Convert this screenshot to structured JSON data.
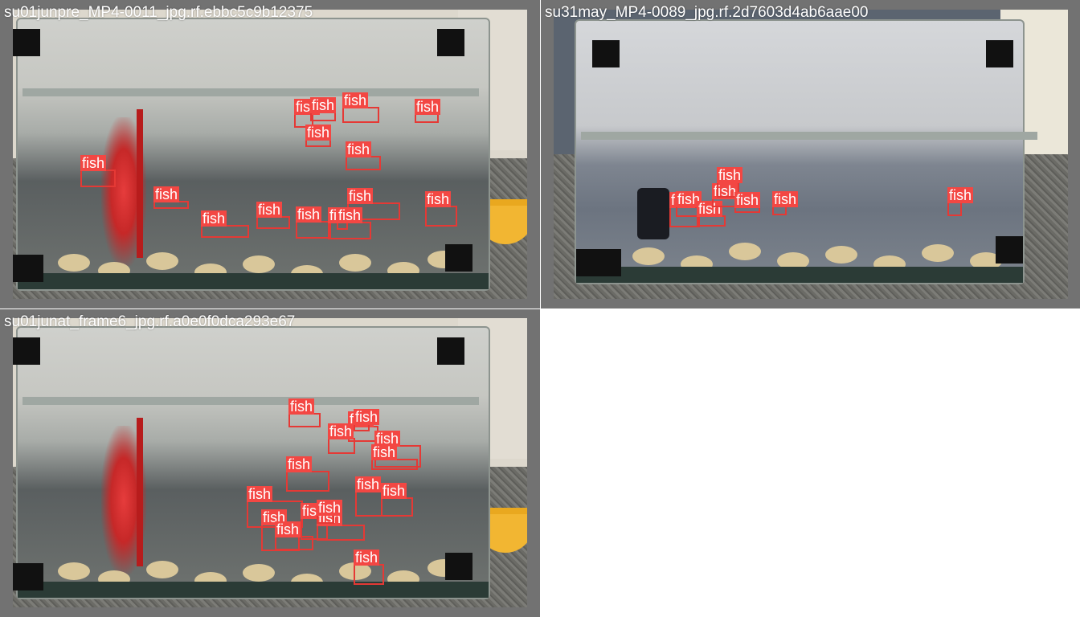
{
  "panels": [
    {
      "caption": "su01junpre_MP4-0011_jpg.rf.ebbc5c9b12375",
      "detections": [
        {
          "label": "fish"
        },
        {
          "label": "fish"
        },
        {
          "label": "fish"
        },
        {
          "label": "fish"
        },
        {
          "label": "fish"
        },
        {
          "label": "fish"
        },
        {
          "label": "fish"
        },
        {
          "label": "fish"
        },
        {
          "label": "fish"
        },
        {
          "label": "fish"
        },
        {
          "label": "fish"
        },
        {
          "label": "fish"
        },
        {
          "label": "fish"
        },
        {
          "label": "fish"
        },
        {
          "label": "fish"
        }
      ]
    },
    {
      "caption": "su31may_MP4-0089_jpg.rf.2d7603d4ab6aae00",
      "detections": [
        {
          "label": "fish"
        },
        {
          "label": "fish"
        },
        {
          "label": "fish"
        },
        {
          "label": "fish"
        },
        {
          "label": "fish"
        },
        {
          "label": "fish"
        },
        {
          "label": "fish"
        },
        {
          "label": "fish"
        }
      ]
    },
    {
      "caption": "su01junat_frame6_jpg.rf.a0e0f0dca293e67",
      "detections": [
        {
          "label": "fish"
        },
        {
          "label": "fish"
        },
        {
          "label": "fish"
        },
        {
          "label": "fish"
        },
        {
          "label": "fish"
        },
        {
          "label": "fish"
        },
        {
          "label": "fish"
        },
        {
          "label": "fish"
        },
        {
          "label": "fish"
        },
        {
          "label": "fish"
        },
        {
          "label": "fish"
        },
        {
          "label": "fish"
        },
        {
          "label": "fish"
        },
        {
          "label": "fish"
        },
        {
          "label": "fish"
        },
        {
          "label": "fish"
        }
      ]
    }
  ],
  "colors": {
    "box": "#e53935",
    "label_bg": "#f34743",
    "label_text": "#ffffff",
    "panel_frame": "#727272"
  }
}
